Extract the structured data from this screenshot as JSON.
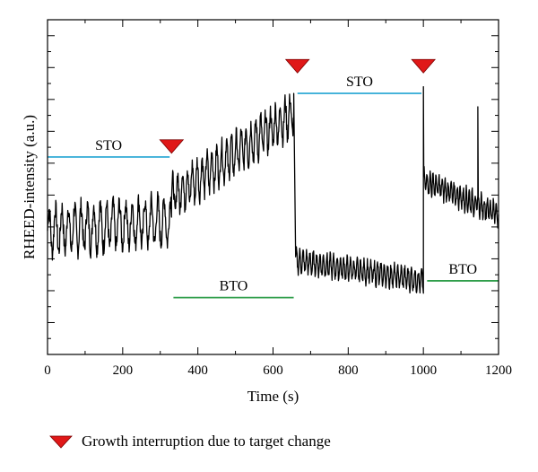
{
  "chart_data": {
    "type": "line",
    "title": "",
    "xlabel": "Time (s)",
    "ylabel": "RHEED-intensity (a.u.)",
    "xlim": [
      0,
      1200
    ],
    "x_ticks": [
      "0",
      "200",
      "400",
      "600",
      "800",
      "1000",
      "1200"
    ],
    "y_ticks_labeled": false,
    "grid": false,
    "colors": {
      "trace": "#000000",
      "sto": "#3fb0d8",
      "bto": "#2f9e4a",
      "marker": "#e01818"
    },
    "series": [
      {
        "segments": [
          {
            "t_start": 0,
            "t_end": 330,
            "base_start": 0.37,
            "base_end": 0.4,
            "osc_amp": 0.065,
            "osc_period": 17
          },
          {
            "t_start": 330,
            "t_end": 655,
            "base_start": 0.47,
            "base_end": 0.72,
            "osc_amp": 0.055,
            "osc_period": 13
          },
          {
            "t_start": 660,
            "t_end": 1000,
            "base_start": 0.28,
            "base_end": 0.22,
            "osc_amp": 0.03,
            "osc_period": 9
          },
          {
            "t_start": 1000,
            "t_end": 1200,
            "base_start": 0.52,
            "base_end": 0.42,
            "osc_amp": 0.03,
            "osc_period": 8
          }
        ],
        "peaks": [
          {
            "t": 655,
            "value": 0.78
          },
          {
            "t": 1000,
            "value": 0.8
          },
          {
            "t": 1145,
            "value": 0.74
          }
        ]
      }
    ],
    "segment_labels": [
      {
        "text": "STO",
        "material": "sto",
        "x_start": 0,
        "x_end": 325,
        "level": 0.59
      },
      {
        "text": "BTO",
        "material": "bto",
        "x_start": 335,
        "x_end": 655,
        "level": 0.17
      },
      {
        "text": "STO",
        "material": "sto",
        "x_start": 665,
        "x_end": 995,
        "level": 0.78
      },
      {
        "text": "BTO",
        "material": "bto",
        "x_start": 1010,
        "x_end": 1200,
        "level": 0.22
      }
    ],
    "markers": [
      {
        "t": 330,
        "level": 0.62
      },
      {
        "t": 665,
        "level": 0.86
      },
      {
        "t": 1000,
        "level": 0.86
      }
    ]
  },
  "legend": {
    "marker_icon": "red-down-triangle",
    "text": "Growth interruption due to target change"
  }
}
